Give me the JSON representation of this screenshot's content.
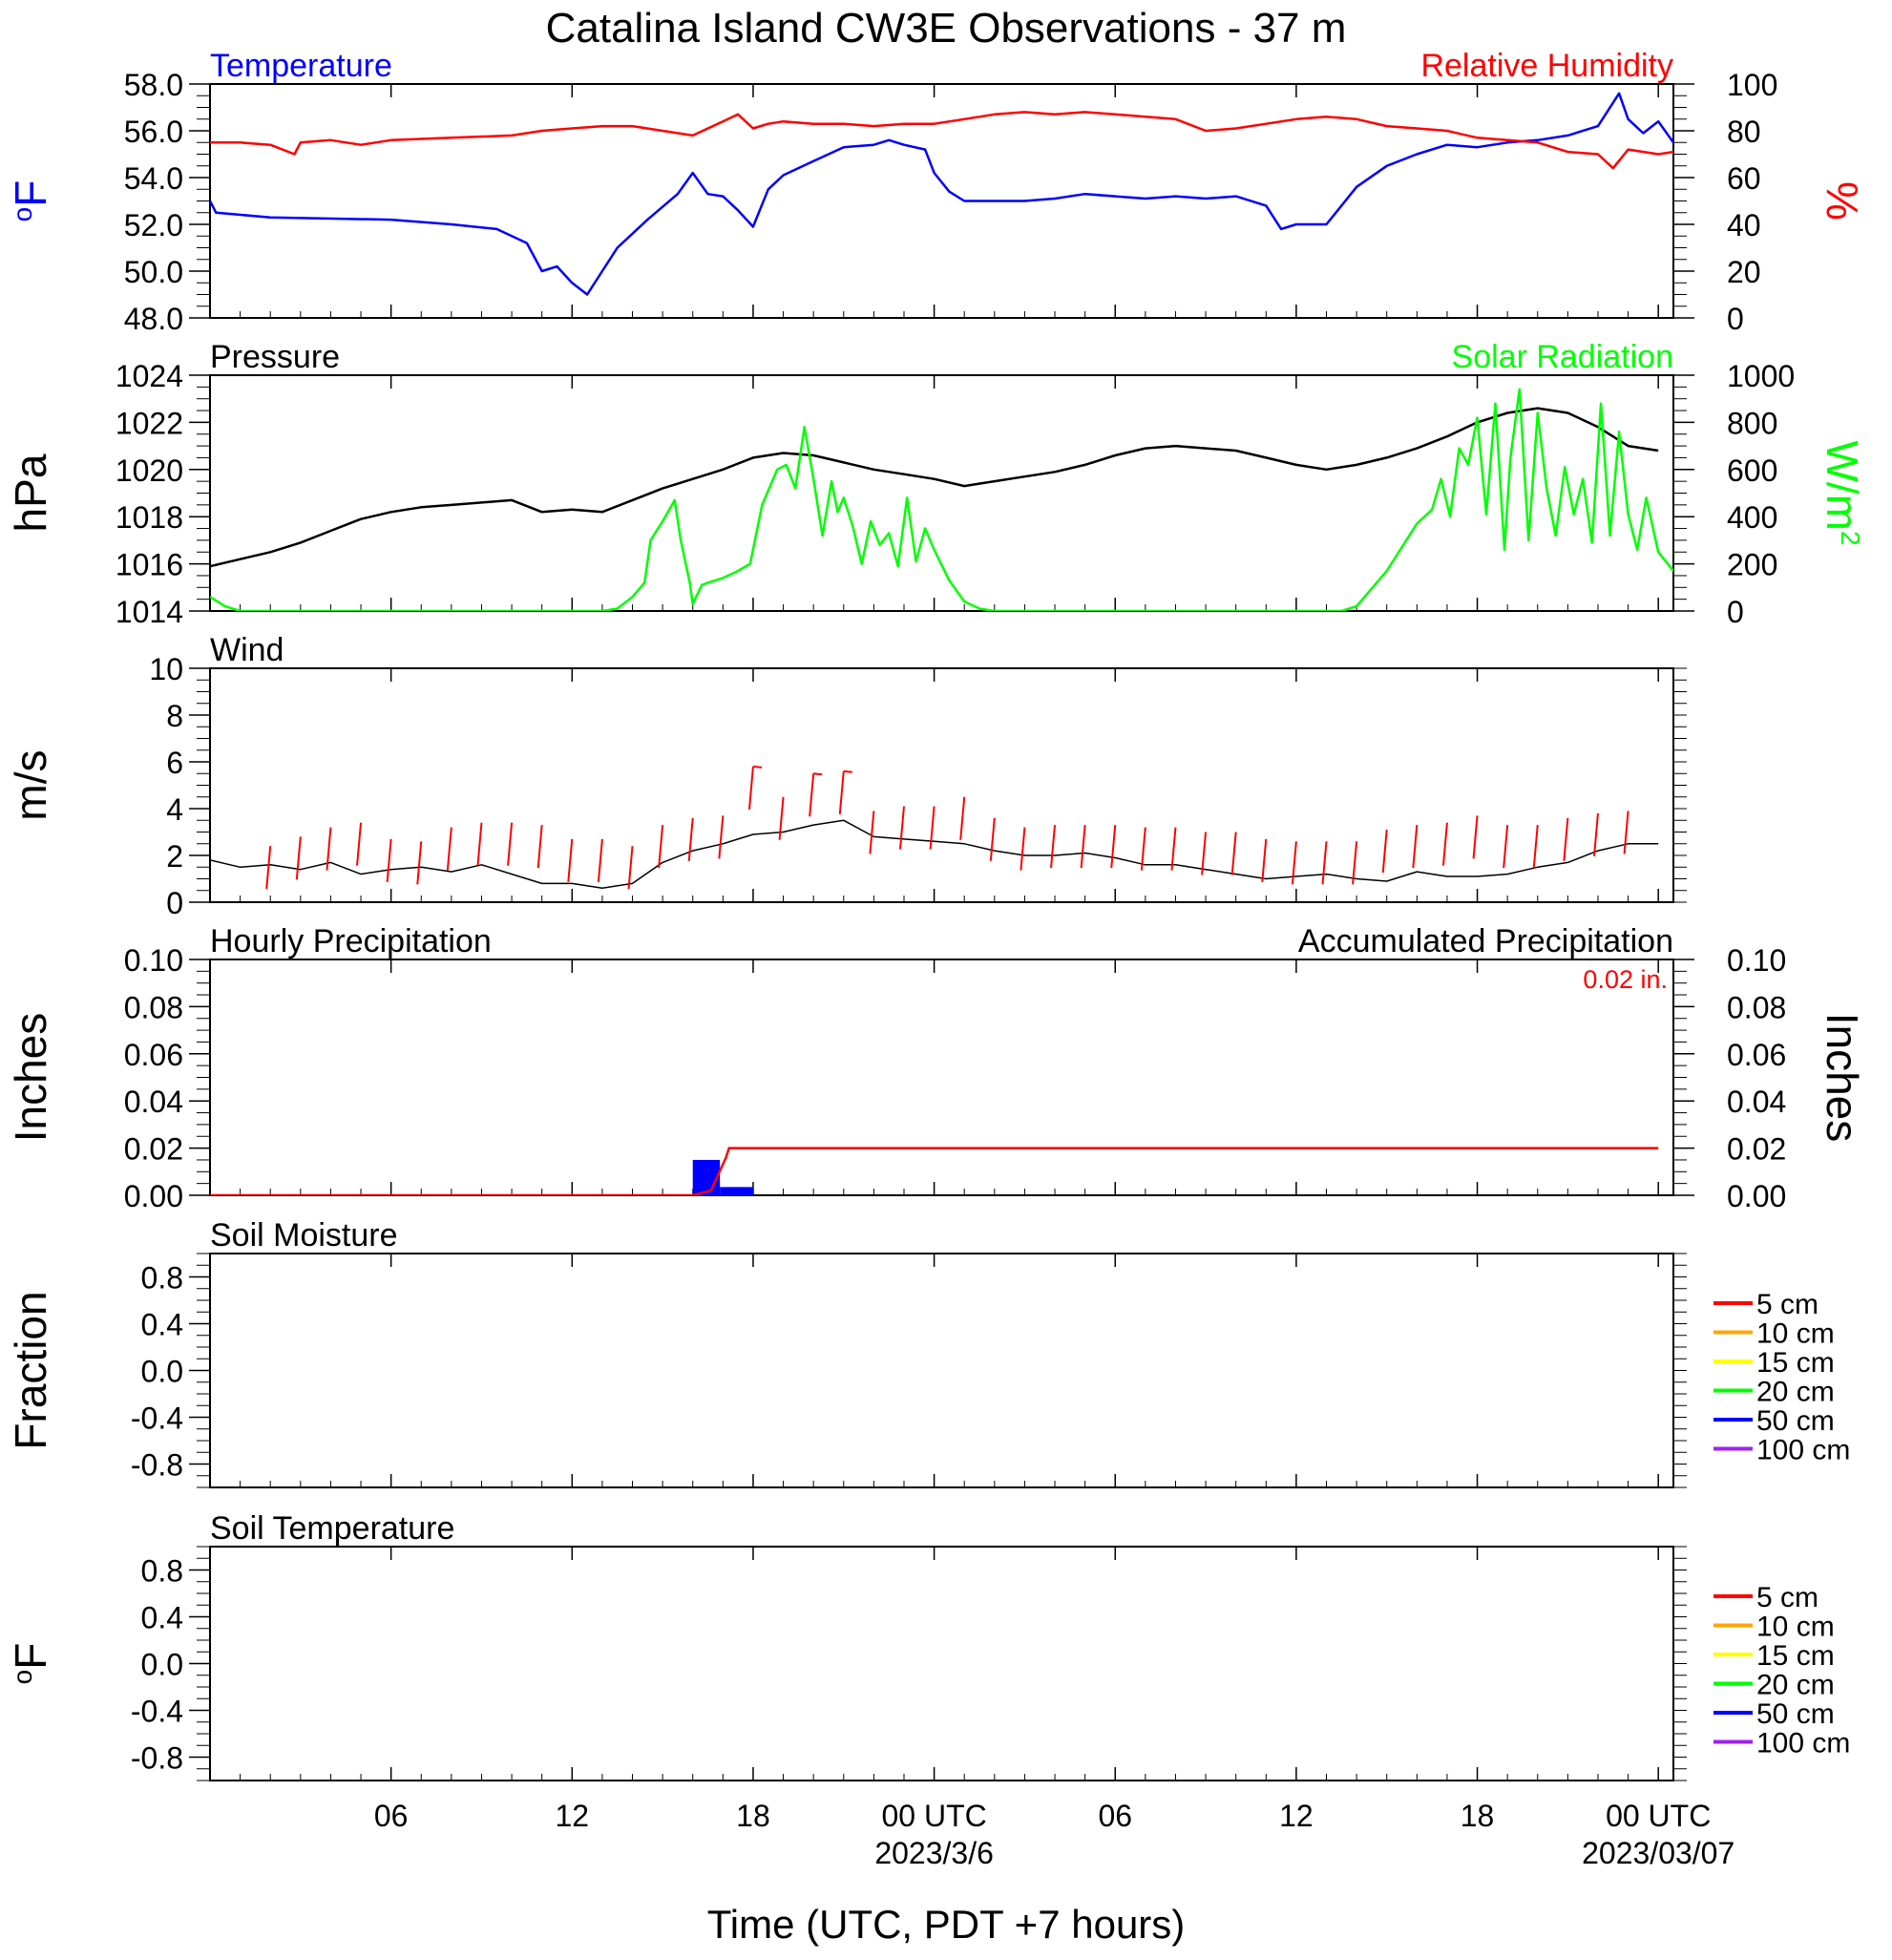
{
  "title": "Catalina Island CW3E Observations - 37 m",
  "x_axis": {
    "label": "Time (UTC, PDT +7 hours)",
    "ticks": [
      "06",
      "12",
      "18",
      "00 UTC",
      "06",
      "12",
      "18",
      "00 UTC"
    ],
    "dates": [
      "2023/3/6",
      "2023/03/07"
    ]
  },
  "chart_data": [
    {
      "type": "line",
      "title": "Temperature / Relative Humidity",
      "left_label": "Temperature",
      "left_unit": "oF",
      "left_ticks": [
        "58.0",
        "56.0",
        "54.0",
        "52.0",
        "50.0",
        "48.0"
      ],
      "left_ylim": [
        48,
        58
      ],
      "right_label": "Relative Humidity",
      "right_unit": "%",
      "right_ticks": [
        "100",
        "80",
        "60",
        "40",
        "20",
        "0"
      ],
      "right_ylim": [
        0,
        100
      ],
      "colors": {
        "left": "#0000ff",
        "right": "#ff0000"
      },
      "series": [
        {
          "name": "Temperature",
          "axis": "left",
          "color": "#0000ff",
          "x": [
            0,
            0.2,
            2,
            6,
            8,
            9.5,
            10.5,
            11,
            11.5,
            12,
            12.5,
            13,
            13.5,
            14.5,
            15.5,
            16,
            16.5,
            17,
            17.5,
            18,
            18.5,
            19,
            20,
            21,
            22,
            22.5,
            23,
            23.7,
            24,
            24.5,
            25,
            26,
            27,
            28,
            29,
            30,
            31,
            32,
            33,
            34,
            35,
            35.5,
            36,
            37,
            38,
            39,
            40,
            41,
            42,
            43,
            44,
            45,
            46,
            46.7,
            47,
            47.5,
            48,
            48.5
          ],
          "y": [
            53,
            52.5,
            52.3,
            52.2,
            52,
            51.8,
            51.2,
            50,
            50.2,
            49.5,
            49,
            50,
            51,
            52.2,
            53.3,
            54.2,
            53.3,
            53.2,
            52.6,
            51.9,
            53.5,
            54.1,
            54.7,
            55.3,
            55.4,
            55.6,
            55.4,
            55.2,
            54.2,
            53.4,
            53,
            53,
            53,
            53.1,
            53.3,
            53.2,
            53.1,
            53.2,
            53.1,
            53.2,
            52.8,
            51.8,
            52,
            52,
            53.6,
            54.5,
            55,
            55.4,
            55.3,
            55.5,
            55.6,
            55.8,
            56.2,
            57.6,
            56.5,
            55.9,
            56.4,
            55.5
          ]
        },
        {
          "name": "Relative Humidity",
          "axis": "right",
          "color": "#ff0000",
          "x": [
            0,
            1,
            2,
            2.8,
            3,
            4,
            5,
            6,
            8,
            10,
            11,
            12,
            13,
            14,
            15,
            16,
            17,
            17.5,
            18,
            18.5,
            19,
            20,
            21,
            22,
            23,
            24,
            25,
            26,
            27,
            28,
            29,
            30,
            31,
            32,
            33,
            34,
            35,
            36,
            37,
            38,
            39,
            40,
            41,
            42,
            43,
            44,
            45,
            46,
            46.5,
            47,
            48,
            48.5
          ],
          "y": [
            75,
            75,
            74,
            70,
            75,
            76,
            74,
            76,
            77,
            78,
            80,
            81,
            82,
            82,
            80,
            78,
            84,
            87,
            81,
            83,
            84,
            83,
            83,
            82,
            83,
            83,
            85,
            87,
            88,
            87,
            88,
            87,
            86,
            85,
            80,
            81,
            83,
            85,
            86,
            85,
            82,
            81,
            80,
            77,
            76,
            75,
            71,
            70,
            64,
            72,
            70,
            71
          ]
        }
      ]
    },
    {
      "type": "line",
      "title": "Pressure / Solar Radiation",
      "left_label": "Pressure",
      "left_unit": "hPa",
      "left_ticks": [
        "1024",
        "1022",
        "1020",
        "1018",
        "1016",
        "1014"
      ],
      "left_ylim": [
        1014,
        1024
      ],
      "right_label": "Solar Radiation",
      "right_unit": "W/m2",
      "right_ticks": [
        "1000",
        "800",
        "600",
        "400",
        "200",
        "0"
      ],
      "right_ylim": [
        0,
        1000
      ],
      "colors": {
        "left": "#000000",
        "right": "#00ff00"
      },
      "series": [
        {
          "name": "Pressure",
          "axis": "left",
          "color": "#000000",
          "x": [
            0,
            1,
            2,
            3,
            4,
            5,
            6,
            7,
            8,
            9,
            10,
            11,
            12,
            13,
            14,
            15,
            16,
            17,
            18,
            19,
            20,
            21,
            22,
            23,
            24,
            25,
            26,
            27,
            28,
            29,
            30,
            31,
            32,
            33,
            34,
            35,
            36,
            37,
            38,
            39,
            40,
            41,
            42,
            43,
            44,
            45,
            46,
            47,
            48
          ],
          "y": [
            1015.9,
            1016.2,
            1016.5,
            1016.9,
            1017.4,
            1017.9,
            1018.2,
            1018.4,
            1018.5,
            1018.6,
            1018.7,
            1018.2,
            1018.3,
            1018.2,
            1018.7,
            1019.2,
            1019.6,
            1020,
            1020.5,
            1020.7,
            1020.6,
            1020.3,
            1020,
            1019.8,
            1019.6,
            1019.3,
            1019.5,
            1019.7,
            1019.9,
            1020.2,
            1020.6,
            1020.9,
            1021,
            1020.9,
            1020.8,
            1020.5,
            1020.2,
            1020,
            1020.2,
            1020.5,
            1020.9,
            1021.4,
            1022,
            1022.4,
            1022.6,
            1022.4,
            1021.8,
            1021,
            1020.8
          ]
        },
        {
          "name": "Solar Radiation",
          "axis": "right",
          "color": "#00ff00",
          "x": [
            0,
            0.5,
            1,
            5,
            10,
            13,
            13.5,
            14,
            14.4,
            14.6,
            15,
            15.4,
            15.6,
            15.9,
            16,
            16.3,
            16.5,
            17,
            17.5,
            17.9,
            18.3,
            18.8,
            19.1,
            19.4,
            19.7,
            20,
            20.3,
            20.6,
            20.8,
            21,
            21.3,
            21.6,
            21.9,
            22.2,
            22.5,
            22.8,
            23.1,
            23.4,
            23.7,
            24,
            24.5,
            25,
            25.5,
            26,
            27,
            30,
            35,
            37.5,
            38,
            39,
            40,
            40.5,
            40.8,
            41.1,
            41.4,
            41.7,
            42,
            42.3,
            42.6,
            42.9,
            43.1,
            43.4,
            43.7,
            44,
            44.3,
            44.6,
            44.9,
            45.2,
            45.5,
            45.8,
            46.1,
            46.4,
            46.7,
            47,
            47.3,
            47.6,
            48,
            48.5
          ],
          "y": [
            60,
            20,
            0,
            0,
            0,
            0,
            10,
            60,
            120,
            300,
            380,
            470,
            300,
            120,
            30,
            110,
            120,
            140,
            170,
            200,
            450,
            600,
            620,
            520,
            780,
            560,
            320,
            550,
            420,
            480,
            360,
            200,
            380,
            280,
            330,
            190,
            480,
            210,
            350,
            260,
            130,
            40,
            10,
            0,
            0,
            0,
            0,
            0,
            20,
            170,
            370,
            430,
            560,
            400,
            690,
            620,
            820,
            410,
            880,
            260,
            650,
            940,
            300,
            840,
            520,
            320,
            610,
            410,
            560,
            290,
            880,
            320,
            760,
            410,
            260,
            480,
            250,
            170
          ]
        }
      ]
    },
    {
      "type": "line",
      "title": "Wind",
      "left_label": "Wind",
      "left_unit": "m/s",
      "left_ticks": [
        "10",
        "8",
        "6",
        "4",
        "2",
        "0"
      ],
      "left_ylim": [
        0,
        10
      ],
      "colors": {
        "speed": "#000000",
        "barbs": "#ff0000"
      },
      "series": [
        {
          "name": "Wind speed",
          "axis": "left",
          "color": "#000000",
          "x": [
            0,
            1,
            2,
            3,
            4,
            5,
            6,
            7,
            8,
            9,
            10,
            11,
            12,
            13,
            14,
            15,
            16,
            17,
            18,
            19,
            20,
            21,
            22,
            23,
            24,
            25,
            26,
            27,
            28,
            29,
            30,
            31,
            32,
            33,
            34,
            35,
            36,
            37,
            38,
            39,
            40,
            41,
            42,
            43,
            44,
            45,
            46,
            47,
            48
          ],
          "y": [
            1.8,
            1.5,
            1.6,
            1.4,
            1.7,
            1.2,
            1.4,
            1.5,
            1.3,
            1.6,
            1.2,
            0.8,
            0.8,
            0.6,
            0.8,
            1.7,
            2.2,
            2.5,
            2.9,
            3,
            3.3,
            3.5,
            2.8,
            2.7,
            2.6,
            2.5,
            2.2,
            2,
            2,
            2.1,
            1.9,
            1.6,
            1.6,
            1.4,
            1.2,
            1,
            1.1,
            1.2,
            1,
            0.9,
            1.3,
            1.1,
            1.1,
            1.2,
            1.5,
            1.7,
            2.2,
            2.5,
            2.5
          ]
        },
        {
          "name": "Wind barbs",
          "axis": "left",
          "color": "#ff0000",
          "x": [
            2,
            3,
            4,
            5,
            6,
            7,
            8,
            9,
            10,
            11,
            12,
            13,
            14,
            15,
            16,
            17,
            18,
            19,
            20,
            21,
            22,
            23,
            24,
            25,
            26,
            27,
            28,
            29,
            30,
            31,
            32,
            33,
            34,
            35,
            36,
            37,
            38,
            39,
            40,
            41,
            42,
            43,
            44,
            45,
            46,
            47
          ],
          "y": [
            2.4,
            2.8,
            3.2,
            3.4,
            2.7,
            2.6,
            3.2,
            3.4,
            3.4,
            3.3,
            2.7,
            2.7,
            2.4,
            3.3,
            3.6,
            3.7,
            5.8,
            4.5,
            5.5,
            5.6,
            3.9,
            4.1,
            4.1,
            4.5,
            3.6,
            3.2,
            3.3,
            3.3,
            3.3,
            3.2,
            3.2,
            3,
            3,
            2.7,
            2.6,
            2.6,
            2.6,
            3.1,
            3.3,
            3.4,
            3.7,
            3.3,
            3.3,
            3.6,
            3.8,
            3.9
          ]
        }
      ]
    },
    {
      "type": "bar",
      "title": "Hourly Precipitation / Accumulated Precipitation",
      "left_label": "Hourly Precipitation",
      "left_unit": "Inches",
      "left_ticks": [
        "0.10",
        "0.08",
        "0.06",
        "0.04",
        "0.02",
        "0.00"
      ],
      "left_ylim": [
        0,
        0.1
      ],
      "right_label": "Accumulated Precipitation",
      "right_unit": "Inches",
      "right_ticks": [
        "0.10",
        "0.08",
        "0.06",
        "0.04",
        "0.02",
        "0.00"
      ],
      "right_ylim": [
        0,
        0.1
      ],
      "total_text": "0.02 in.",
      "colors": {
        "hourly": "#0000ff",
        "accumulated": "#ff0000"
      },
      "hourly_bars": [
        {
          "x0": 16,
          "x1": 16.9,
          "value": 0.015
        },
        {
          "x0": 16.9,
          "x1": 18,
          "value": 0.0035
        }
      ],
      "accumulated": {
        "x": [
          0,
          16,
          16.6,
          17.1,
          17.2,
          48
        ],
        "y": [
          0,
          0,
          0.002,
          0.016,
          0.02,
          0.02
        ]
      }
    },
    {
      "type": "line",
      "title": "Soil Moisture",
      "left_label": "Soil Moisture",
      "left_unit": "Fraction",
      "left_ticks": [
        "0.8",
        "0.4",
        "0.0",
        "-0.4",
        "-0.8"
      ],
      "left_ylim": [
        -1,
        1
      ],
      "legend": [
        {
          "label": "5 cm",
          "color": "#ff0000"
        },
        {
          "label": "10 cm",
          "color": "#ffa500"
        },
        {
          "label": "15 cm",
          "color": "#ffff00"
        },
        {
          "label": "20 cm",
          "color": "#00ff00"
        },
        {
          "label": "50 cm",
          "color": "#0000ff"
        },
        {
          "label": "100 cm",
          "color": "#a020f0"
        }
      ],
      "series": []
    },
    {
      "type": "line",
      "title": "Soil Temperature",
      "left_label": "Soil Temperature",
      "left_unit": "oF",
      "left_ticks": [
        "0.8",
        "0.4",
        "0.0",
        "-0.4",
        "-0.8"
      ],
      "left_ylim": [
        -1,
        1
      ],
      "legend": [
        {
          "label": "5 cm",
          "color": "#ff0000"
        },
        {
          "label": "10 cm",
          "color": "#ffa500"
        },
        {
          "label": "15 cm",
          "color": "#ffff00"
        },
        {
          "label": "20 cm",
          "color": "#00ff00"
        },
        {
          "label": "50 cm",
          "color": "#0000ff"
        },
        {
          "label": "100 cm",
          "color": "#a020f0"
        }
      ],
      "series": []
    }
  ]
}
